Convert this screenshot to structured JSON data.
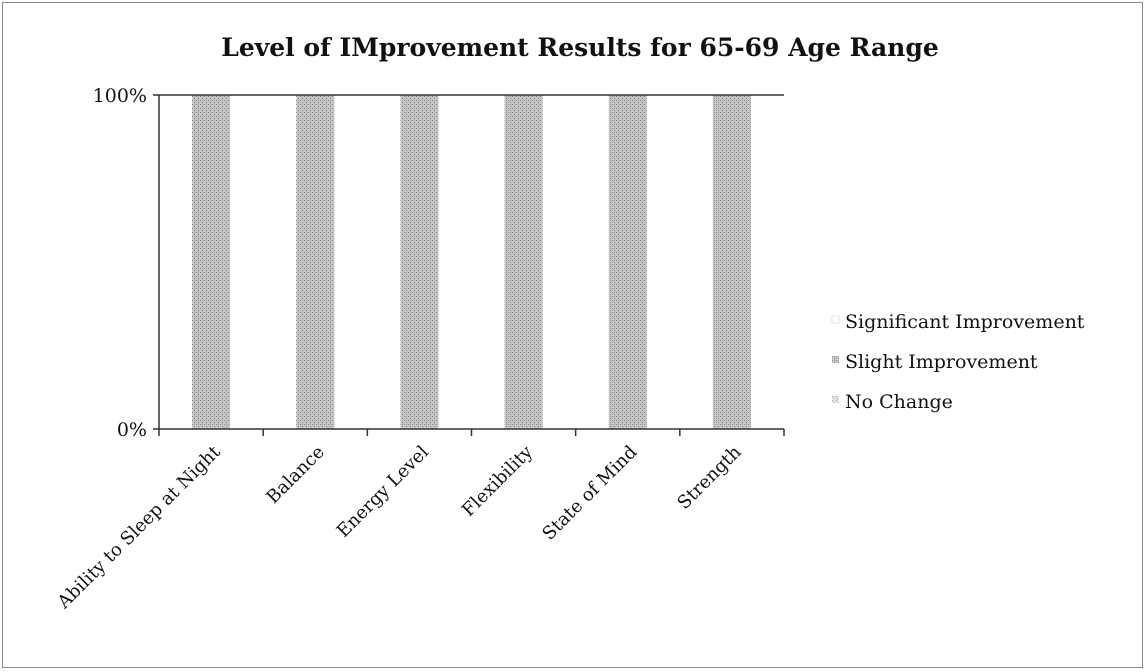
{
  "chart_data": {
    "type": "bar",
    "stacked": true,
    "percent_stacked": true,
    "title": "Level of IMprovement Results for 65-69 Age Range",
    "categories": [
      "Ability to Sleep at Night",
      "Balance",
      "Energy Level",
      "Flexibility",
      "State of Mind",
      "Strength"
    ],
    "series": [
      {
        "name": "Significant Improvement",
        "values": [
          0,
          0,
          0,
          0,
          0,
          0
        ],
        "color": "#ffffff"
      },
      {
        "name": "Slight Improvement",
        "values": [
          100,
          100,
          100,
          100,
          100,
          100
        ],
        "color": "#b4b4b4"
      },
      {
        "name": "No Change",
        "values": [
          0,
          0,
          0,
          0,
          0,
          0
        ],
        "color": "#d8d8d8"
      }
    ],
    "y_ticks": [
      "0%",
      "100%"
    ],
    "ylim": [
      0,
      100
    ],
    "xlabel": "",
    "ylabel": "",
    "grid": false,
    "legend_position": "right"
  }
}
